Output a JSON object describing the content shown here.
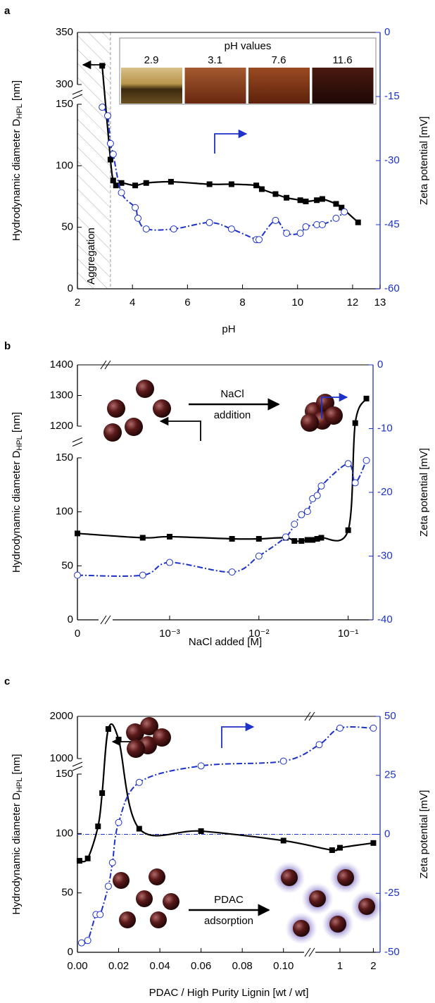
{
  "chart_data": [
    {
      "type": "line",
      "panel_label": "a",
      "x_label": "pH",
      "y_label": "Hydrodynamic diameter D",
      "y_label_sub": "HPL",
      "y_label_unit": " [nm]",
      "y2_label": "Zeta potential [mV]",
      "x_segments": [
        {
          "scale": "linear",
          "xlim": [
            2,
            13
          ],
          "xticks": [
            2,
            4,
            6,
            8,
            10,
            12,
            13
          ]
        }
      ],
      "y_segments": [
        {
          "ylim": [
            0,
            150
          ],
          "yticks": [
            0,
            50,
            100,
            150
          ]
        },
        {
          "ylim": [
            300,
            350
          ],
          "yticks": [
            300,
            350
          ]
        }
      ],
      "y2lim": [
        -60,
        0
      ],
      "y2ticks": [
        0,
        -15,
        -30,
        -45,
        -60
      ],
      "series": [
        {
          "color": "#000000",
          "marker": "square",
          "x": [
            2.9,
            3.2,
            3.3,
            3.4,
            3.6,
            4.1,
            4.5,
            5.4,
            6.8,
            7.6,
            8.5,
            8.7,
            9.2,
            9.6,
            10.1,
            10.3,
            10.7,
            10.9,
            11.4,
            11.6,
            12.2
          ],
          "values": [
            318,
            105,
            88,
            84,
            86,
            84,
            86,
            87,
            85,
            85,
            84,
            81,
            77,
            74,
            72,
            71,
            72,
            73,
            69,
            66,
            54
          ]
        },
        {
          "color": "#1c32c8",
          "marker": "circle",
          "axis": "y2",
          "x": [
            2.9,
            3.1,
            3.2,
            3.3,
            3.6,
            4.1,
            4.2,
            4.5,
            5.5,
            6.8,
            7.6,
            8.5,
            8.6,
            9.2,
            9.6,
            10.1,
            10.3,
            10.7,
            10.9,
            11.4,
            11.7
          ],
          "values": [
            -17.5,
            -19.5,
            -26,
            -28.5,
            -37.5,
            -41,
            -43.5,
            -46,
            -46,
            -44.5,
            -46,
            -48.5,
            -48.5,
            -44,
            -47,
            -47,
            -45.5,
            -45,
            -45,
            -43.5,
            -42
          ]
        }
      ],
      "aggregation_ph": 3.2,
      "region_label": "Aggregation",
      "inset": {
        "title": "pH values",
        "labels": [
          "2.9",
          "3.1",
          "7.6",
          "11.6"
        ]
      }
    },
    {
      "type": "line",
      "panel_label": "b",
      "x_label": "NaCl added [M]",
      "y_label": "Hydrodynamic diameter D",
      "y_label_sub": "HPL",
      "y_label_unit": " [nm]",
      "y2_label": "Zeta potential [mV]",
      "x_segments": [
        {
          "scale": "linear",
          "xlim": [
            0,
            0.0001
          ],
          "xticks": [
            0
          ]
        },
        {
          "scale": "log",
          "xlim": [
            0.00023,
            0.19
          ],
          "xticks": [
            {
              "value": 0.001,
              "label": "10⁻³"
            },
            {
              "value": 0.01,
              "label": "10⁻²"
            },
            {
              "value": 0.1,
              "label": "10⁻¹"
            }
          ]
        }
      ],
      "y_segments": [
        {
          "ylim": [
            0,
            150
          ],
          "yticks": [
            0,
            50,
            100,
            150
          ]
        },
        {
          "ylim": [
            1200,
            1400
          ],
          "yticks": [
            1200,
            1300,
            1400
          ]
        }
      ],
      "y2lim": [
        -40,
        0
      ],
      "y2ticks": [
        0,
        -10,
        -20,
        -30,
        -40
      ],
      "series": [
        {
          "color": "#000000",
          "marker": "square",
          "x": [
            0,
            0.0005,
            0.001,
            0.005,
            0.01,
            0.02,
            0.025,
            0.03,
            0.035,
            0.04,
            0.045,
            0.05,
            0.1,
            0.12,
            0.16
          ],
          "values": [
            80,
            76,
            77,
            75,
            75,
            76,
            73,
            73,
            74,
            74,
            75,
            76,
            83,
            1210,
            1290
          ]
        },
        {
          "color": "#1c32c8",
          "marker": "circle",
          "axis": "y2",
          "x": [
            0,
            0.0005,
            0.001,
            0.005,
            0.01,
            0.02,
            0.025,
            0.03,
            0.035,
            0.04,
            0.045,
            0.05,
            0.1,
            0.12,
            0.16
          ],
          "values": [
            -33,
            -33,
            -31,
            -32.5,
            -30,
            -27,
            -25,
            -23.5,
            -23,
            -21,
            -20.5,
            -19,
            -15.5,
            -18.5,
            -15
          ]
        }
      ],
      "scheme": [
        "NaCl",
        "addition"
      ]
    },
    {
      "type": "line",
      "panel_label": "c",
      "x_label": "PDAC / High Purity Lignin [wt / wt]",
      "y_label": "Hydrodynamic diameter D",
      "y_label_sub": "HPL",
      "y_label_unit": " [nm]",
      "y2_label": "Zeta potential [mV]",
      "x_segments": [
        {
          "scale": "linear",
          "xlim": [
            0,
            0.11
          ],
          "xticks": [
            {
              "value": 0,
              "label": "0.00"
            },
            {
              "value": 0.02,
              "label": "0.02"
            },
            {
              "value": 0.04,
              "label": "0.04"
            },
            {
              "value": 0.06,
              "label": "0.06"
            },
            {
              "value": 0.08,
              "label": "0.08"
            },
            {
              "value": 0.1,
              "label": "0.10"
            }
          ]
        },
        {
          "scale": "log",
          "xlim": [
            0.6,
            2.3
          ],
          "xticks": [
            1,
            2
          ]
        }
      ],
      "y_segments": [
        {
          "ylim": [
            0,
            150
          ],
          "yticks": [
            0,
            50,
            100,
            150
          ]
        },
        {
          "ylim": [
            1000,
            2000
          ],
          "yticks": [
            1000,
            2000
          ]
        }
      ],
      "y2lim": [
        -50,
        50
      ],
      "y2ticks": [
        50,
        25,
        0,
        -25,
        -50
      ],
      "y2_ref": 0,
      "series": [
        {
          "color": "#000000",
          "marker": "square",
          "x": [
            0.001,
            0.005,
            0.01,
            0.012,
            0.015,
            0.02,
            0.03,
            0.06,
            0.1,
            0.85,
            1,
            2
          ],
          "values": [
            77,
            79,
            106,
            134,
            1700,
            1450,
            104,
            102,
            94,
            86,
            88,
            92
          ]
        },
        {
          "color": "#1c32c8",
          "marker": "circle",
          "axis": "y2",
          "x": [
            0.002,
            0.005,
            0.009,
            0.011,
            0.015,
            0.017,
            0.02,
            0.03,
            0.06,
            0.1,
            0.65,
            1,
            2
          ],
          "values": [
            -46,
            -45,
            -34,
            -34,
            -22,
            -12,
            5,
            22,
            29,
            31,
            38,
            45,
            45
          ]
        }
      ],
      "scheme": [
        "PDAC",
        "adsorption"
      ]
    }
  ]
}
